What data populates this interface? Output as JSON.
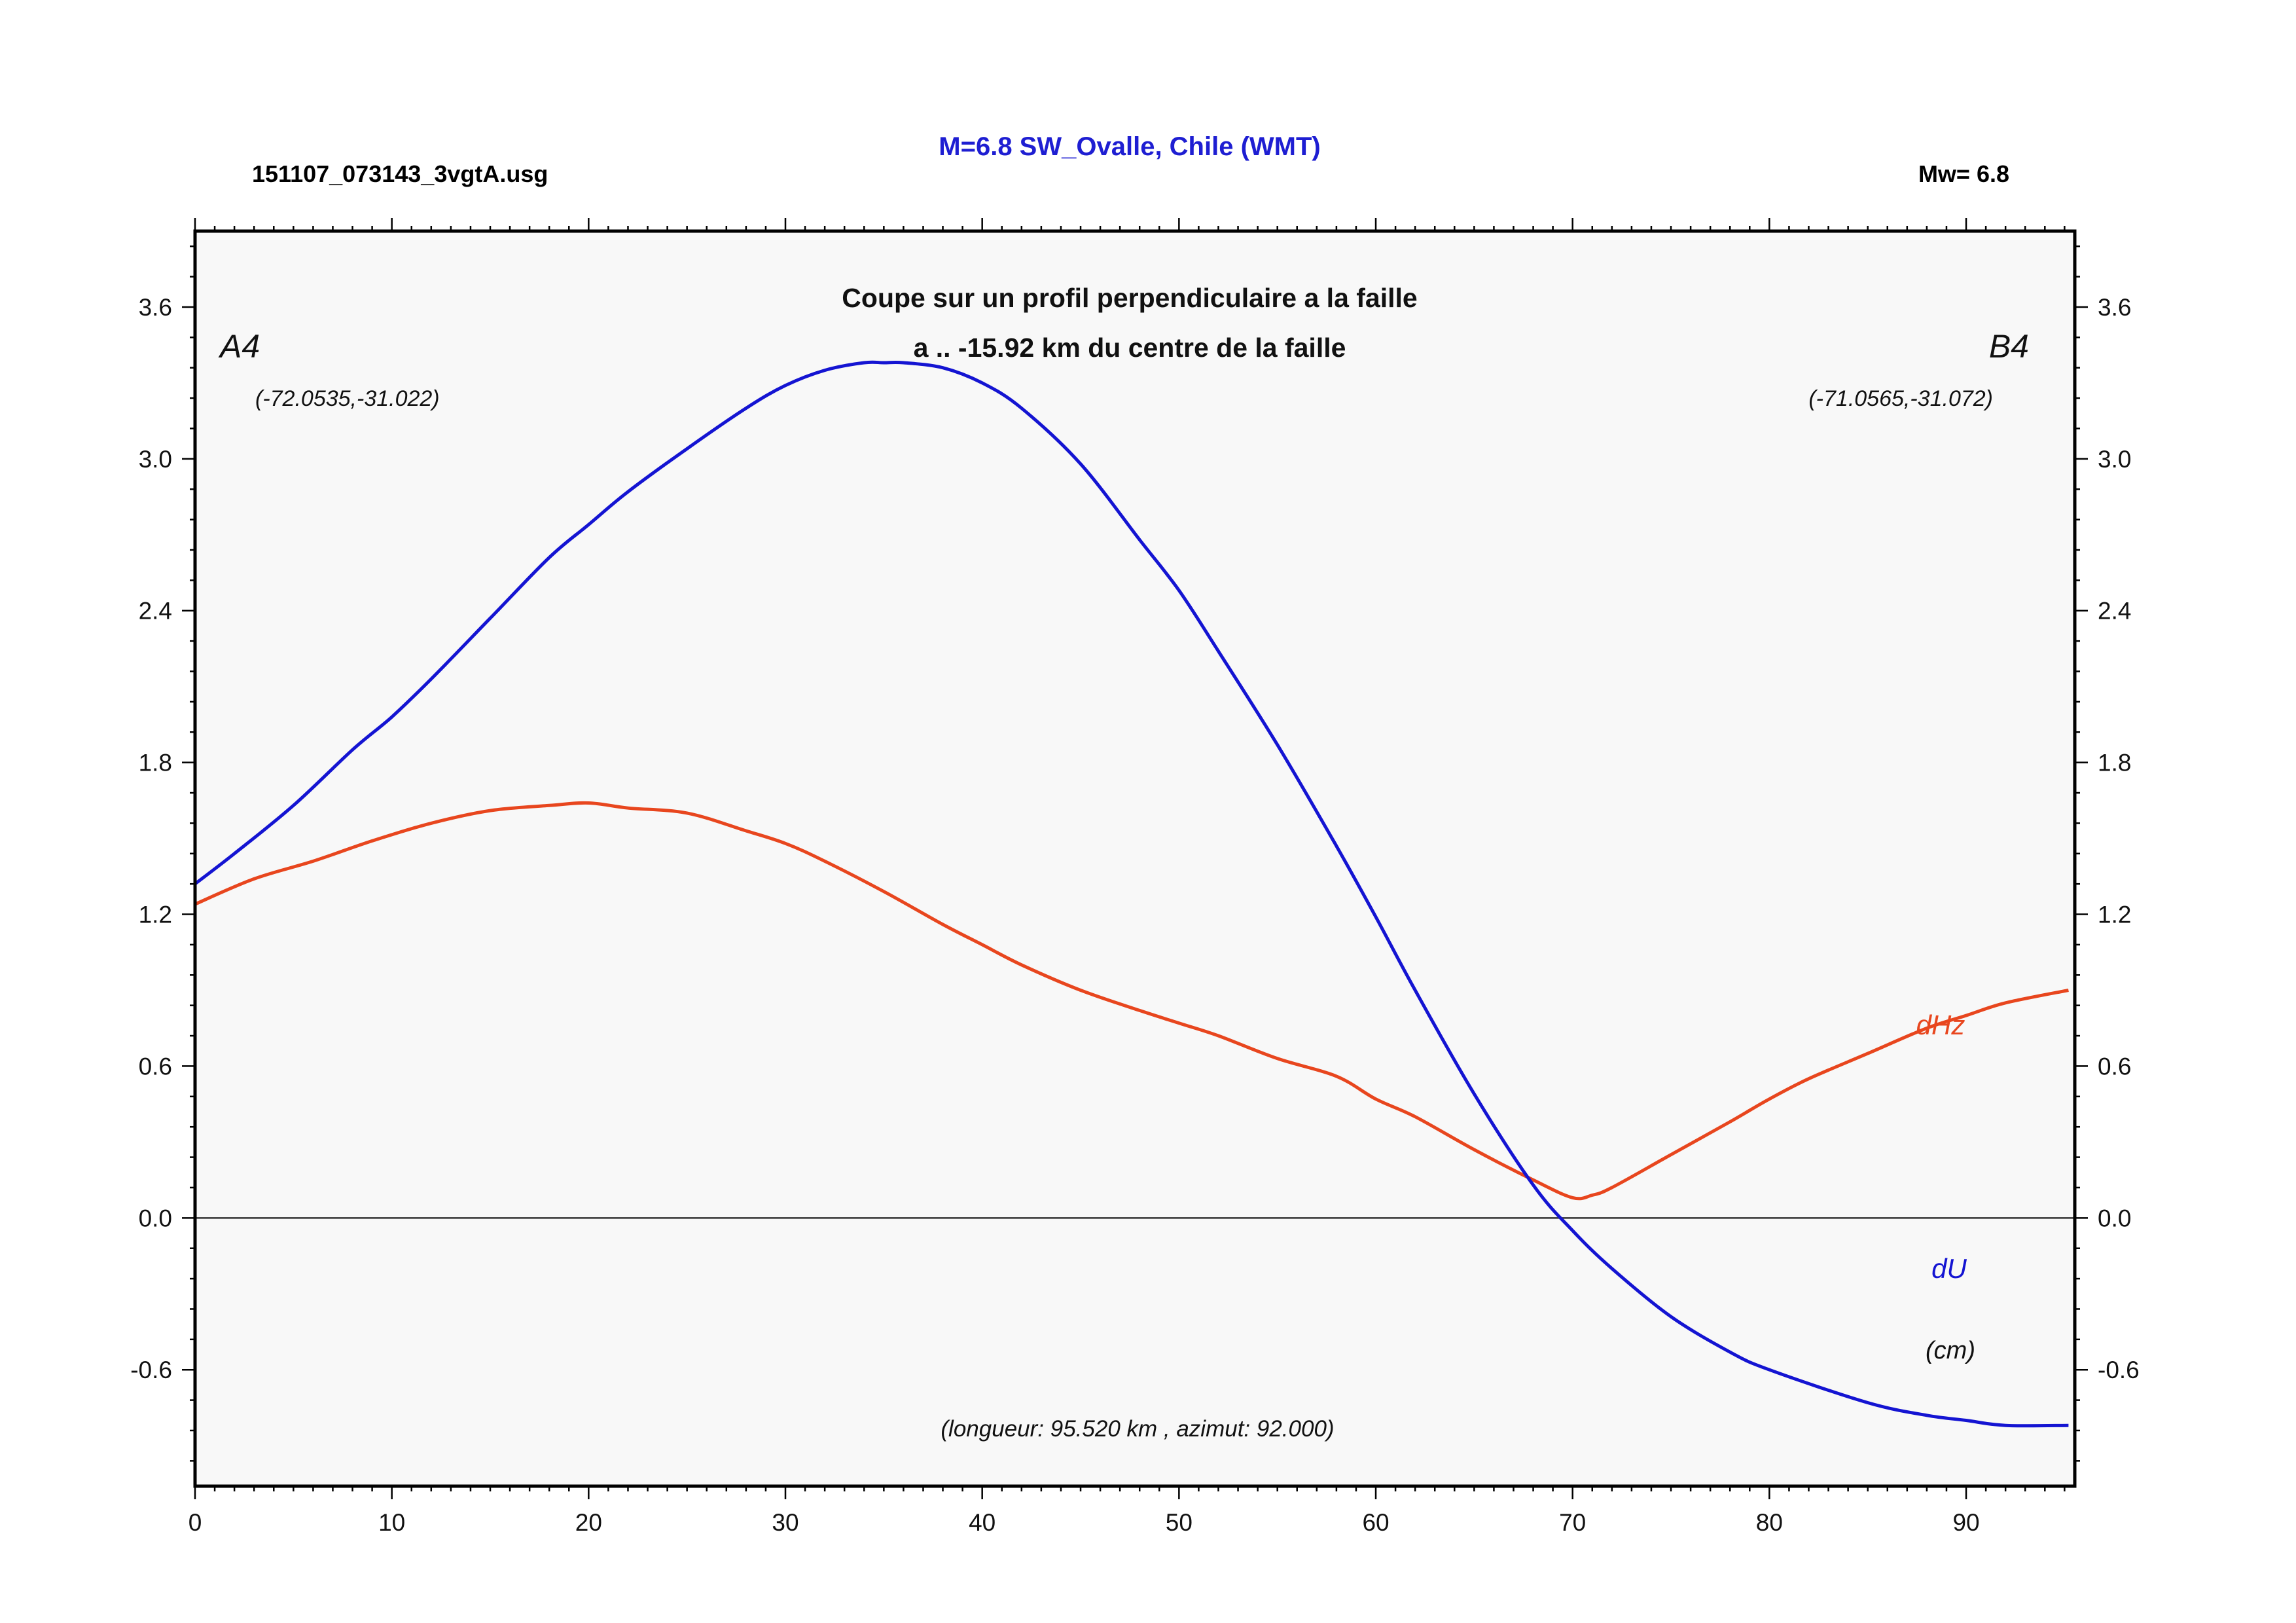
{
  "header": {
    "file_name": "151107_073143_3vgtA.usg",
    "title": "M=6.8 SW_Ovalle, Chile (WMT)",
    "magnitude": "Mw= 6.8"
  },
  "colors": {
    "title": "#1e1ed2",
    "du_line": "#1414d2",
    "dhz_line": "#e8461e",
    "plot_background": "#f8f8f8",
    "frame": "#000000"
  },
  "chart_data": {
    "type": "line",
    "title": "Coupe sur un profil perpendiculaire a la faille",
    "subtitle": "a .. -15.92 km du centre de la faille",
    "start_point": {
      "label": "A4",
      "coords": "(-72.0535,-31.022)"
    },
    "end_point": {
      "label": "B4",
      "coords": "(-71.0565,-31.072)"
    },
    "units_label": "(cm)",
    "footnote": "(longueur: 95.520 km , azimut: 92.000)",
    "xlim": [
      0,
      95.52
    ],
    "ylim": [
      -1.06,
      3.9
    ],
    "x_ticks": [
      "0",
      "10",
      "20",
      "30",
      "40",
      "50",
      "60",
      "70",
      "80",
      "90"
    ],
    "y_ticks": [
      "3.6",
      "3.0",
      "2.4",
      "1.8",
      "1.2",
      "0.6",
      "0.0",
      "-0.6"
    ],
    "zero_line": true,
    "grid": false,
    "series": [
      {
        "name": "dU",
        "label_text": "dU",
        "color": "#1414d2",
        "x": [
          0,
          2,
          5,
          8,
          10,
          12,
          15,
          18,
          20,
          22,
          25,
          28,
          30,
          32,
          34,
          35,
          36,
          38,
          40,
          42,
          45,
          48,
          50,
          52,
          55,
          58,
          60,
          62,
          65,
          68,
          70,
          72,
          75,
          78,
          80,
          85,
          88,
          90,
          92,
          95.2
        ],
        "values": [
          1.32,
          1.44,
          1.63,
          1.85,
          1.98,
          2.13,
          2.37,
          2.61,
          2.74,
          2.87,
          3.04,
          3.2,
          3.29,
          3.35,
          3.38,
          3.38,
          3.38,
          3.36,
          3.3,
          3.2,
          2.98,
          2.68,
          2.48,
          2.24,
          1.87,
          1.47,
          1.19,
          0.9,
          0.49,
          0.13,
          -0.05,
          -0.2,
          -0.39,
          -0.53,
          -0.6,
          -0.73,
          -0.78,
          -0.8,
          -0.82,
          -0.82
        ]
      },
      {
        "name": "dHz",
        "label_text": "dHz",
        "color": "#e8461e",
        "x": [
          0,
          3,
          6,
          9,
          12,
          15,
          18,
          20,
          22,
          25,
          28,
          30,
          32,
          35,
          38,
          40,
          42,
          45,
          48,
          50,
          52,
          55,
          58,
          60,
          62,
          65,
          68,
          70,
          71,
          72,
          75,
          78,
          80,
          82,
          85,
          88,
          90,
          92,
          95.2
        ],
        "values": [
          1.24,
          1.34,
          1.41,
          1.49,
          1.56,
          1.61,
          1.63,
          1.64,
          1.62,
          1.6,
          1.53,
          1.48,
          1.41,
          1.29,
          1.16,
          1.08,
          1.0,
          0.9,
          0.82,
          0.77,
          0.72,
          0.63,
          0.56,
          0.47,
          0.4,
          0.27,
          0.15,
          0.08,
          0.09,
          0.12,
          0.25,
          0.38,
          0.47,
          0.55,
          0.65,
          0.75,
          0.8,
          0.85,
          0.9
        ]
      }
    ]
  }
}
